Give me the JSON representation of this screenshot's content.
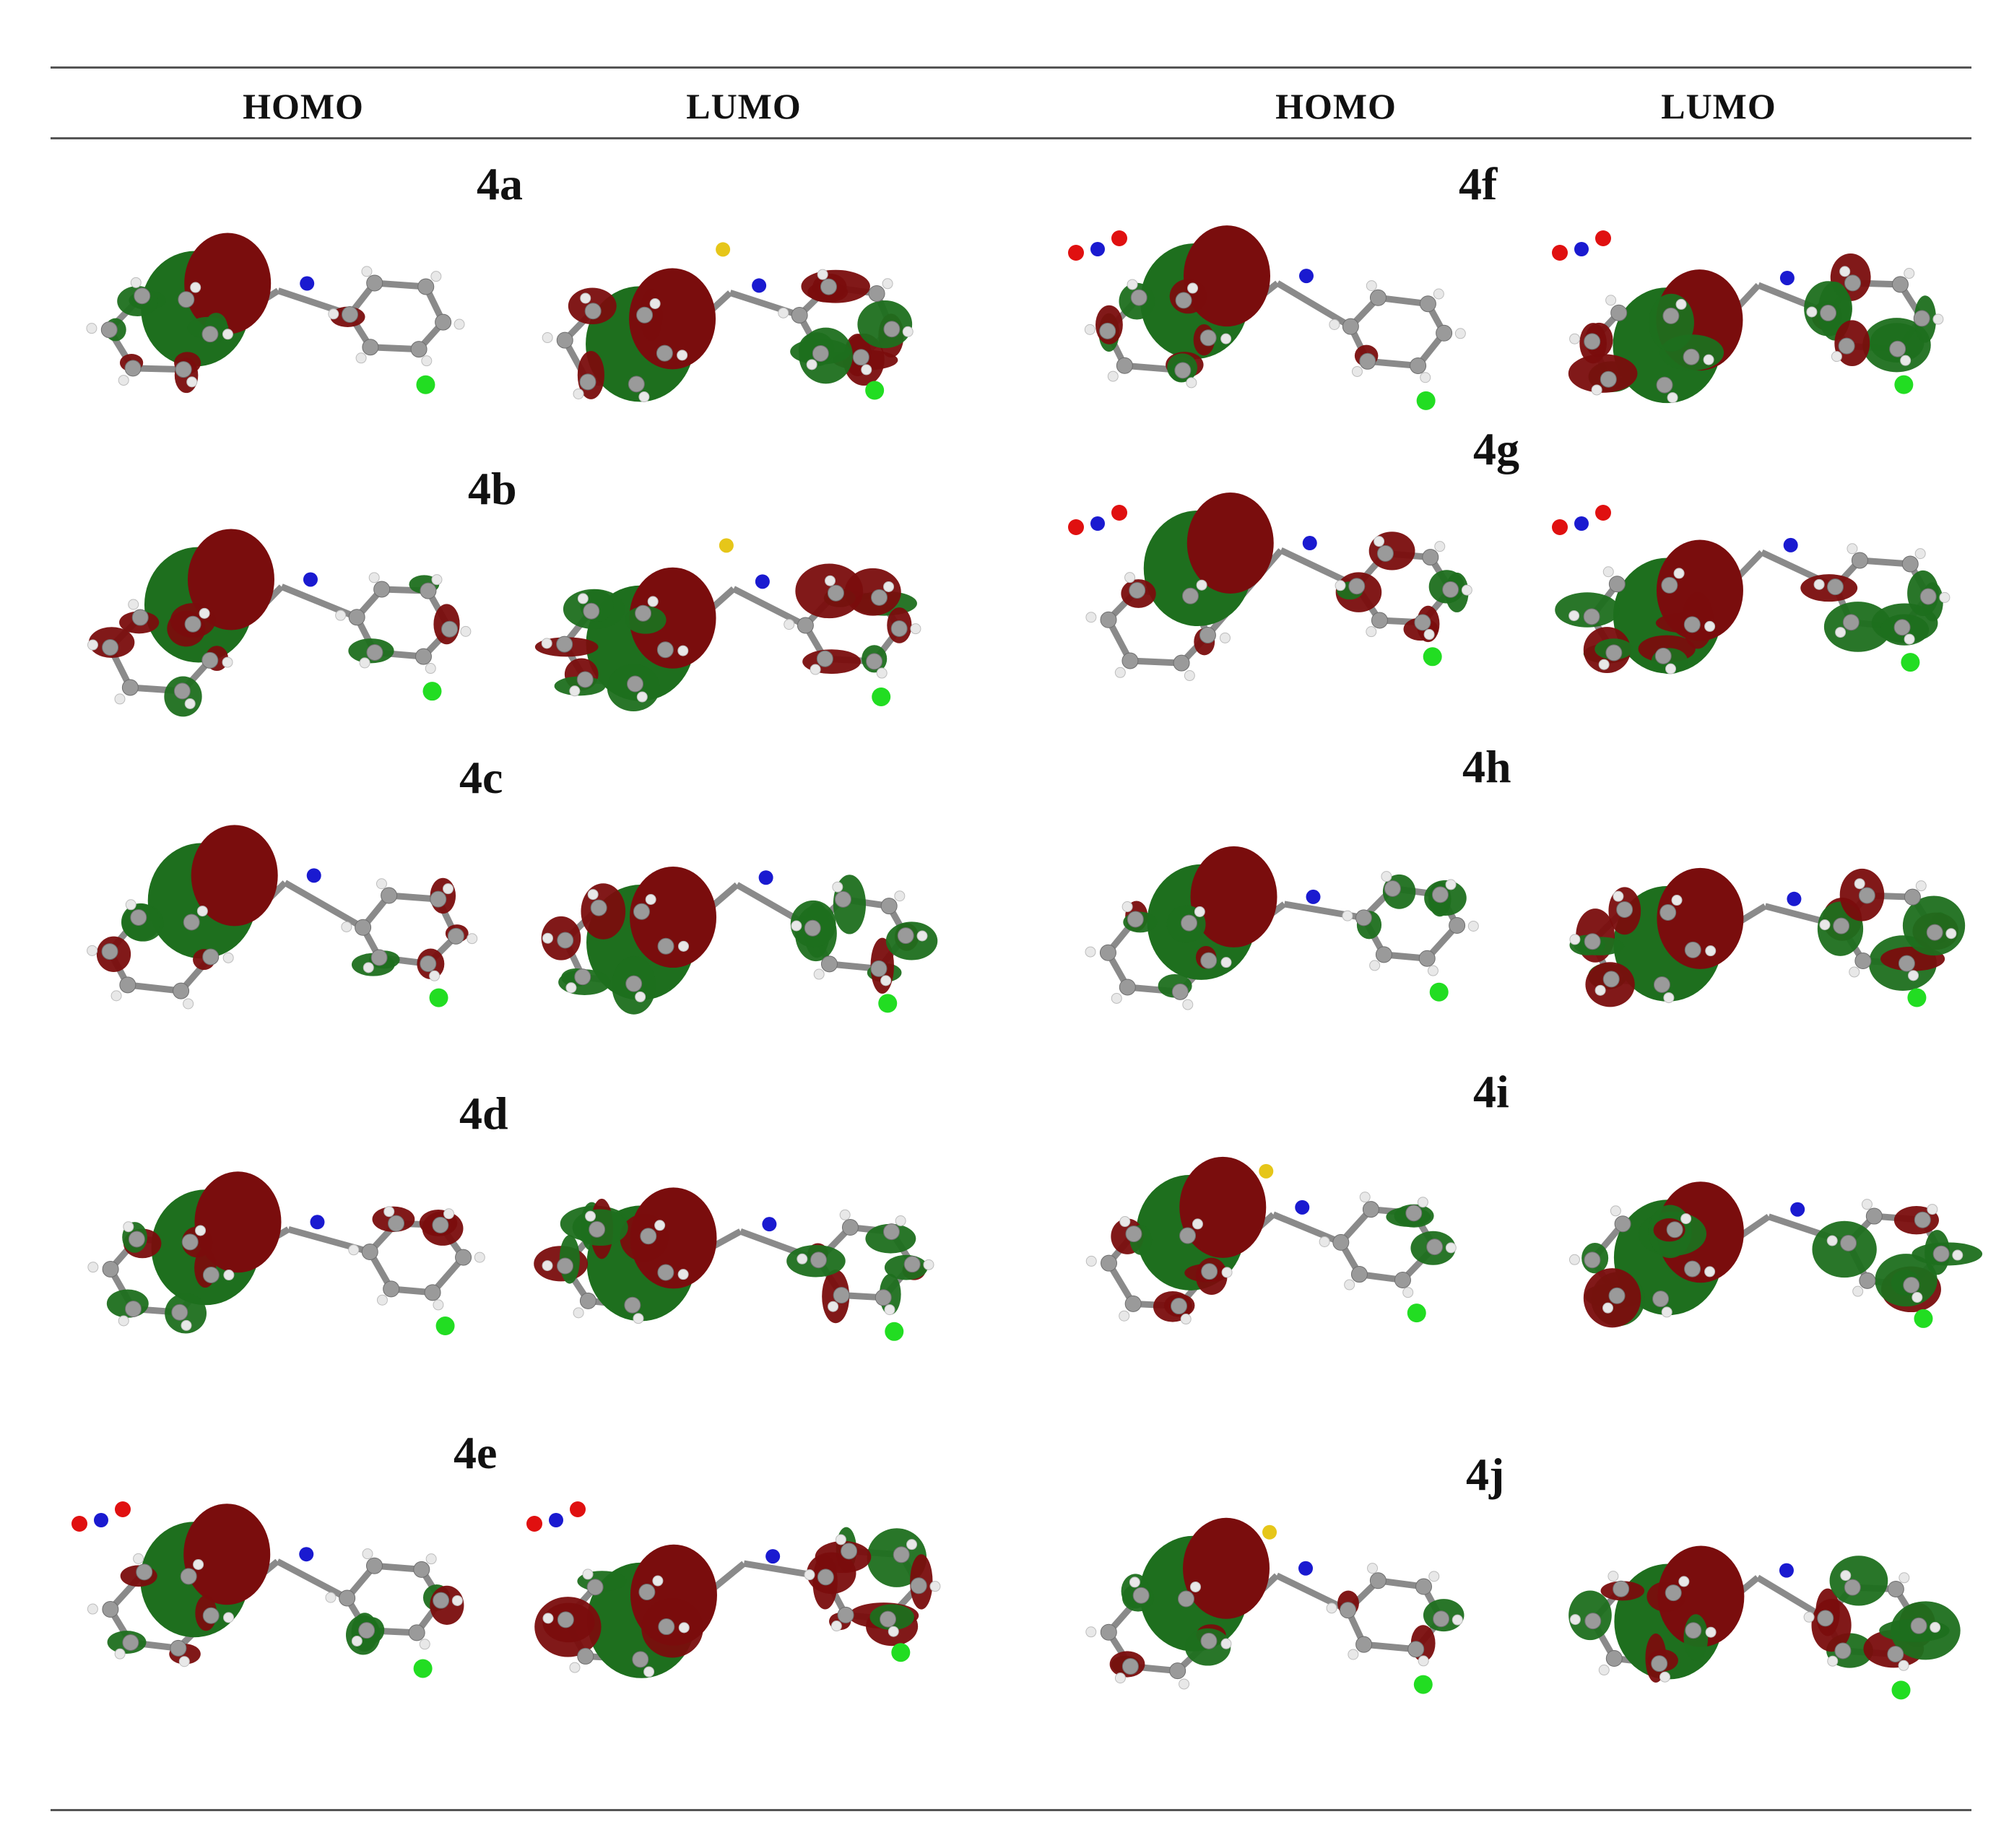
{
  "header": {
    "left_homo": "HOMO",
    "left_lumo": "LUMO",
    "right_homo": "HOMO",
    "right_lumo": "LUMO"
  },
  "compounds": [
    {
      "label": "4a"
    },
    {
      "label": "4b"
    },
    {
      "label": "4c"
    },
    {
      "label": "4d"
    },
    {
      "label": "4e"
    },
    {
      "label": "4f"
    },
    {
      "label": "4g"
    },
    {
      "label": "4h"
    },
    {
      "label": "4i"
    },
    {
      "label": "4j"
    }
  ],
  "colors": {
    "lobe_positive": "#7a0d0d",
    "lobe_negative": "#1e6f1e",
    "carbon": "#9a9a9a",
    "hydrogen": "#e8e8e8",
    "nitrogen": "#1a1ad0",
    "oxygen": "#e01010",
    "sulfur": "#e6c619",
    "chlorine": "#22dd22",
    "rule": "#555555"
  }
}
